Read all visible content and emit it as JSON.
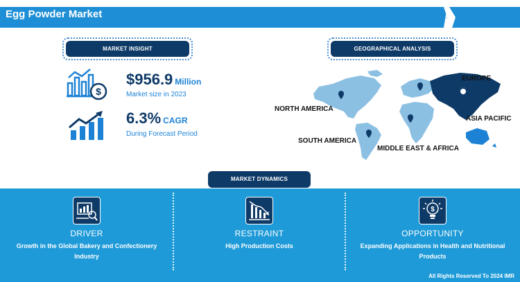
{
  "header": {
    "title": "Egg Powder Market"
  },
  "insight": {
    "label": "MARKET INSIGHT",
    "market_size": {
      "value": "$956.9",
      "unit": "Million",
      "caption": "Market size in 2023"
    },
    "cagr": {
      "value": "6.3%",
      "unit": "CAGR",
      "caption": "During Forecast Period"
    }
  },
  "geo": {
    "label": "GEOGRAPHICAL ANALYSIS",
    "regions": {
      "north_america": "NORTH AMERICA",
      "europe": "EUROPE",
      "asia_pacific": "ASIA PACIFIC",
      "south_america": "SOUTH AMERICA",
      "mea": "MIDDLE EAST & AFRICA"
    },
    "highlighted_region": "Asia Pacific"
  },
  "dynamics": {
    "label": "MARKET DYNAMICS",
    "driver": {
      "title": "DRIVER",
      "text": "Growth in the Global Bakery and Confectionery Industry",
      "icon": "bakery-chart-icon"
    },
    "restraint": {
      "title": "RESTRAINT",
      "text": "High Production Costs",
      "icon": "declining-chart-icon"
    },
    "opportunity": {
      "title": "OPPORTUNITY",
      "text": "Expanding Applications in Health and Nutritional Products",
      "icon": "dollar-bulb-icon"
    }
  },
  "footer": {
    "copyright": "All Rights Reserved To 2024 IMR"
  },
  "colors": {
    "navy": "#0e3a67",
    "blue": "#1e9ad8",
    "accent": "#1d82d6",
    "map_light": "#8cc0e3"
  }
}
